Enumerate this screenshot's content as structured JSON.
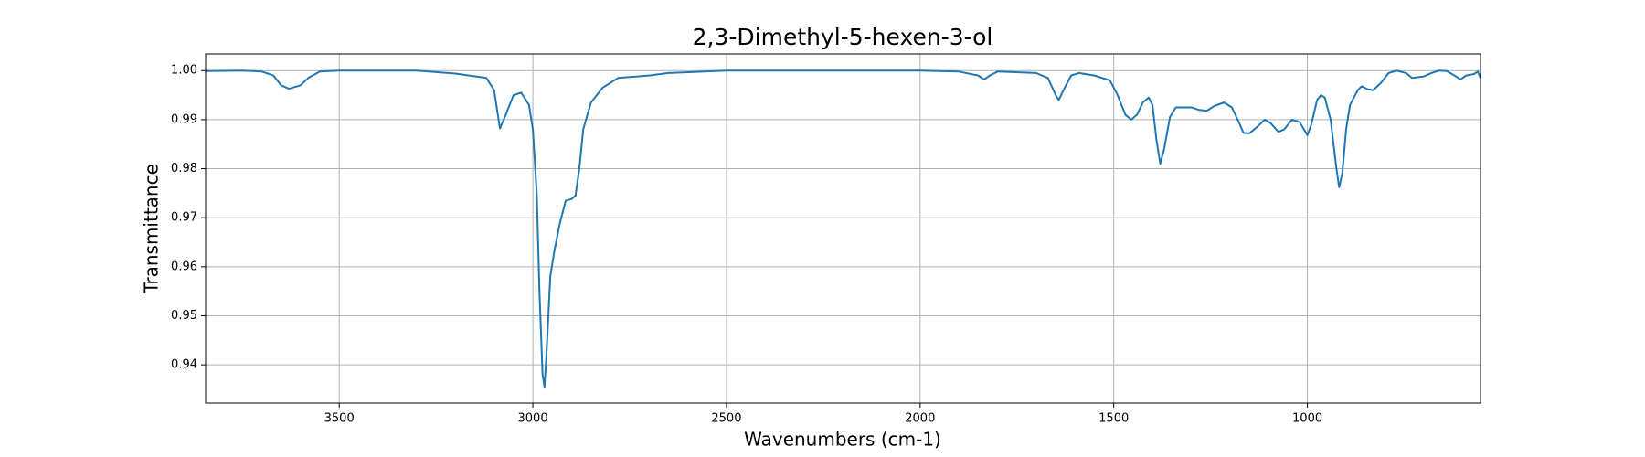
{
  "chart_data": {
    "type": "line",
    "title": "2,3-Dimethyl-5-hexen-3-ol",
    "x_label": "Wavenumbers (cm-1)",
    "y_label": "Transmittance",
    "xlim": [
      3845,
      553
    ],
    "ylim": [
      0.9322,
      1.0034
    ],
    "xticks": [
      3500,
      3000,
      2500,
      2000,
      1500,
      1000
    ],
    "yticks": [
      0.94,
      0.95,
      0.96,
      0.97,
      0.98,
      0.99,
      {
        "value": 1.0,
        "label": "1.00"
      }
    ],
    "grid": true,
    "x": [
      3844,
      3750,
      3700,
      3670,
      3650,
      3630,
      3600,
      3580,
      3550,
      3500,
      3300,
      3200,
      3120,
      3100,
      3085,
      3070,
      3050,
      3030,
      3010,
      3000,
      2990,
      2983,
      2975,
      2970,
      2965,
      2955,
      2945,
      2930,
      2915,
      2900,
      2890,
      2880,
      2870,
      2850,
      2820,
      2780,
      2700,
      2650,
      2500,
      2000,
      1900,
      1850,
      1835,
      1820,
      1800,
      1700,
      1670,
      1650,
      1642,
      1630,
      1610,
      1590,
      1550,
      1510,
      1490,
      1470,
      1455,
      1440,
      1425,
      1410,
      1400,
      1390,
      1380,
      1370,
      1355,
      1340,
      1300,
      1280,
      1260,
      1240,
      1215,
      1195,
      1180,
      1165,
      1150,
      1130,
      1110,
      1095,
      1075,
      1060,
      1040,
      1020,
      1005,
      1000,
      990,
      975,
      965,
      955,
      940,
      925,
      918,
      910,
      900,
      890,
      870,
      860,
      845,
      830,
      810,
      790,
      770,
      745,
      730,
      700,
      680,
      660,
      640,
      620,
      605,
      590,
      570,
      560,
      553
    ],
    "series": [
      {
        "color": "#1f77b4",
        "values": [
          0.9999,
          1.0,
          0.9998,
          0.999,
          0.997,
          0.9963,
          0.997,
          0.9985,
          0.9998,
          1.0,
          1.0,
          0.9994,
          0.9985,
          0.996,
          0.9882,
          0.991,
          0.995,
          0.9955,
          0.993,
          0.988,
          0.975,
          0.955,
          0.938,
          0.9355,
          0.942,
          0.958,
          0.963,
          0.969,
          0.9735,
          0.9738,
          0.9745,
          0.98,
          0.988,
          0.9935,
          0.9965,
          0.9985,
          0.999,
          0.9995,
          1.0,
          1.0,
          0.9998,
          0.999,
          0.9982,
          0.999,
          0.9998,
          0.9995,
          0.9985,
          0.995,
          0.994,
          0.996,
          0.999,
          0.9995,
          0.999,
          0.998,
          0.995,
          0.991,
          0.99,
          0.991,
          0.9935,
          0.9945,
          0.993,
          0.986,
          0.981,
          0.984,
          0.9905,
          0.9925,
          0.9925,
          0.992,
          0.9918,
          0.9928,
          0.9935,
          0.9925,
          0.99,
          0.9873,
          0.9872,
          0.9885,
          0.99,
          0.9893,
          0.9875,
          0.988,
          0.99,
          0.9895,
          0.9875,
          0.9868,
          0.989,
          0.994,
          0.995,
          0.9945,
          0.99,
          0.98,
          0.9762,
          0.979,
          0.988,
          0.993,
          0.996,
          0.9968,
          0.9962,
          0.996,
          0.9975,
          0.9995,
          1.0,
          0.9995,
          0.9985,
          0.9988,
          0.9995,
          1.0,
          0.9999,
          0.999,
          0.9982,
          0.999,
          0.9993,
          0.9998,
          0.9985
        ]
      }
    ]
  }
}
